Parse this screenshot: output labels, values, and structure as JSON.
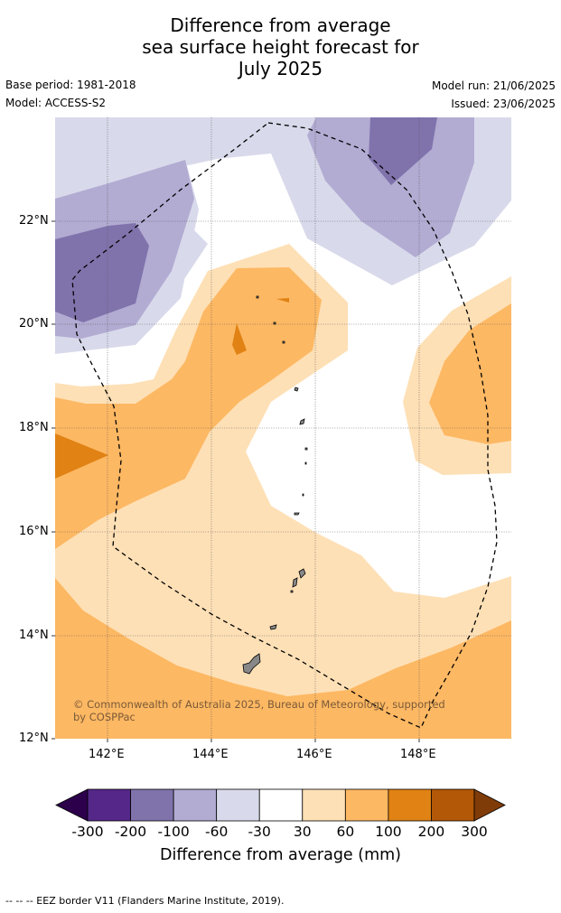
{
  "title": {
    "line1": "Difference from average",
    "line2": "sea surface height forecast for",
    "line3": "July 2025"
  },
  "meta": {
    "base_period": "Base period: 1981-2018",
    "model": "Model: ACCESS-S2",
    "model_run": "Model run: 21/06/2025",
    "issued": "Issued: 23/06/2025"
  },
  "map": {
    "lat_labels": [
      "22°N",
      "20°N",
      "18°N",
      "16°N",
      "14°N",
      "12°N"
    ],
    "lon_labels": [
      "142°E",
      "144°E",
      "146°E",
      "148°E"
    ],
    "copyright_line1": "© Commonwealth of Australia 2025, Bureau of Meteorology, supported",
    "copyright_line2": "by COSPPac",
    "gridlines": true
  },
  "colorbar": {
    "labels": [
      "-300",
      "-200",
      "-100",
      "-60",
      "-30",
      "30",
      "60",
      "100",
      "200",
      "300"
    ],
    "colors": [
      "#2d004b",
      "#542788",
      "#8073ac",
      "#b2abd2",
      "#d8daeb",
      "#ffffff",
      "#fee0b6",
      "#fdb863",
      "#e08214",
      "#b35806",
      "#7f3b08"
    ],
    "title": "Difference from average (mm)"
  },
  "footer": "--  --  -- EEZ border V11 (Flanders Marine Institute, 2019)."
}
